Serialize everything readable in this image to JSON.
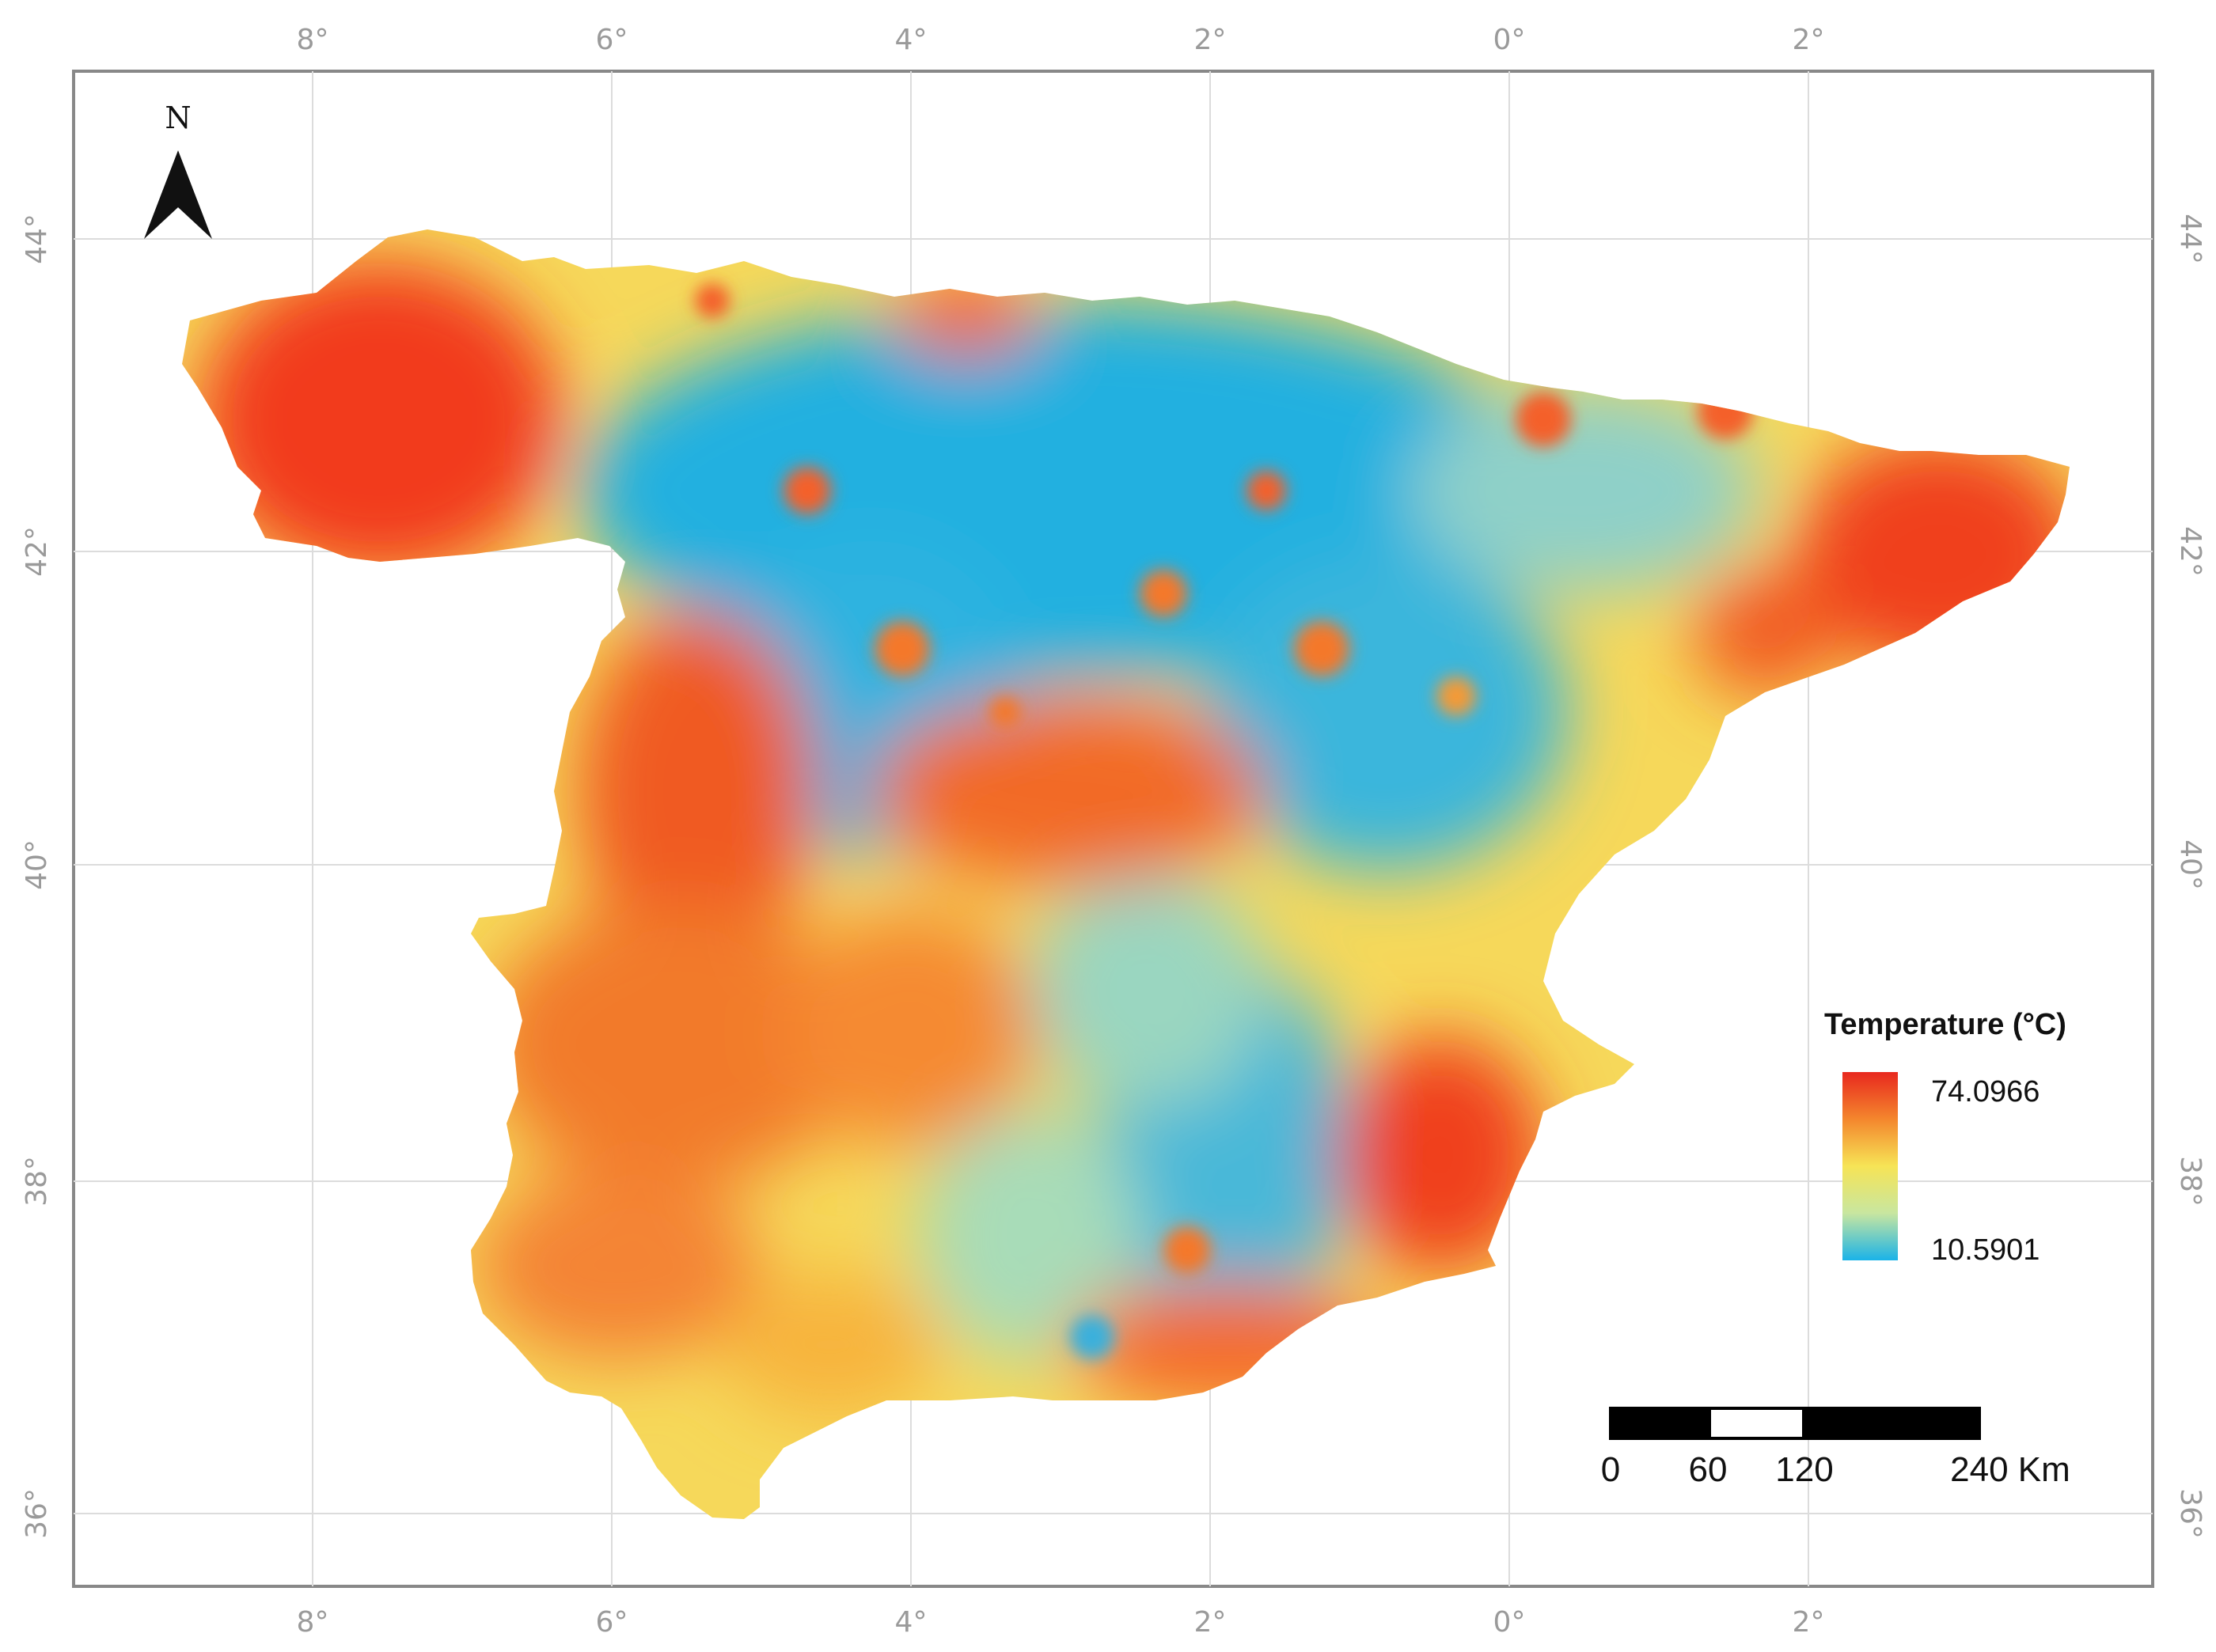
{
  "map": {
    "longitude_ticks": [
      "8°",
      "6°",
      "4°",
      "2°",
      "0°",
      "2°"
    ],
    "latitude_ticks": [
      "44°",
      "42°",
      "40°",
      "38°",
      "36°"
    ],
    "north_label": "N",
    "legend": {
      "title": "Temperature (°C)",
      "max_label": "74.0966",
      "min_label": "10.5901",
      "colors": [
        "#e8281e",
        "#f4862d",
        "#f6e456",
        "#c8e6a0",
        "#1ab3e8"
      ]
    },
    "scale_bar": {
      "labels": [
        "0",
        "60",
        "120",
        "240 Km"
      ]
    }
  }
}
